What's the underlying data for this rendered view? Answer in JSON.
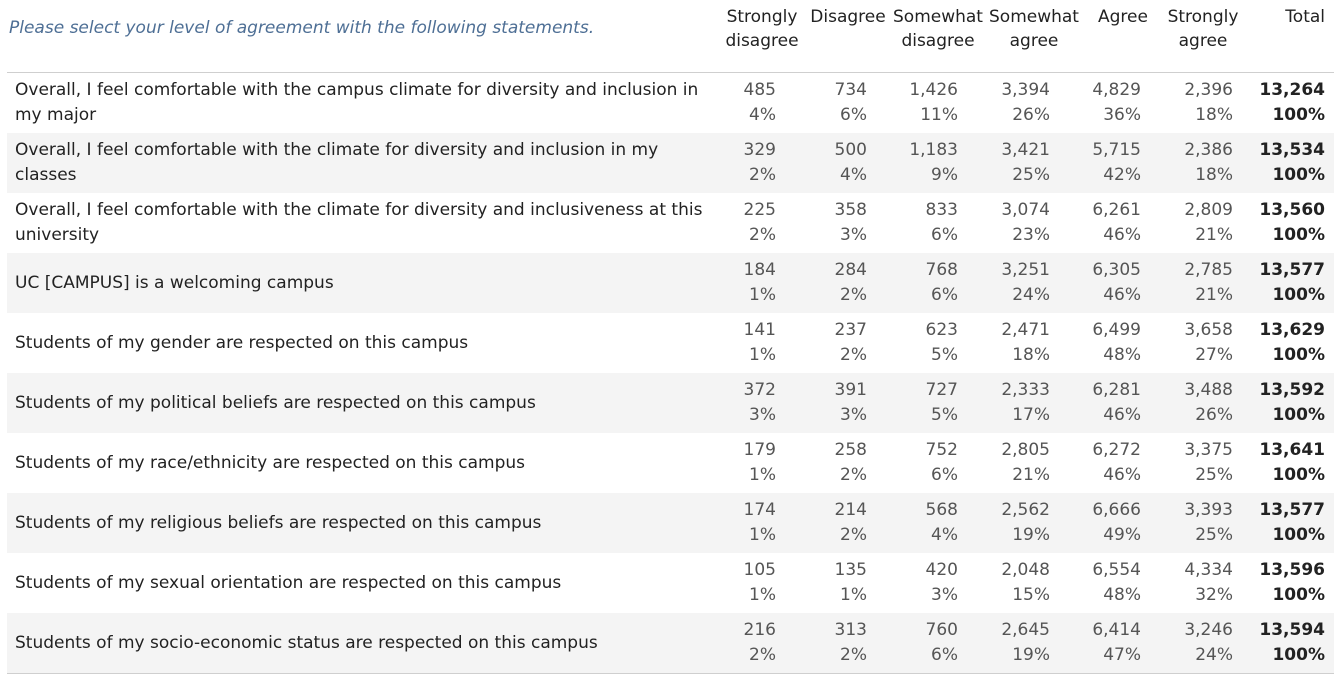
{
  "table": {
    "prompt": "Please select your level of agreement with the following statements.",
    "columns": [
      {
        "line1": "Strongly",
        "line2": "disagree"
      },
      {
        "line1": "Disagree",
        "line2": ""
      },
      {
        "line1": "Somewhat",
        "line2": "disagree"
      },
      {
        "line1": "Somewhat",
        "line2": "agree"
      },
      {
        "line1": "Agree",
        "line2": ""
      },
      {
        "line1": "Strongly",
        "line2": "agree"
      },
      {
        "line1": "Total",
        "line2": ""
      }
    ],
    "rows": [
      {
        "statement": "Overall, I feel comfortable with the campus climate for diversity and inclusion in my major",
        "cells": [
          {
            "n": "485",
            "p": "4%"
          },
          {
            "n": "734",
            "p": "6%"
          },
          {
            "n": "1,426",
            "p": "11%"
          },
          {
            "n": "3,394",
            "p": "26%"
          },
          {
            "n": "4,829",
            "p": "36%"
          },
          {
            "n": "2,396",
            "p": "18%"
          },
          {
            "n": "13,264",
            "p": "100%"
          }
        ]
      },
      {
        "statement": "Overall, I feel comfortable with the climate for diversity and inclusion in my classes",
        "cells": [
          {
            "n": "329",
            "p": "2%"
          },
          {
            "n": "500",
            "p": "4%"
          },
          {
            "n": "1,183",
            "p": "9%"
          },
          {
            "n": "3,421",
            "p": "25%"
          },
          {
            "n": "5,715",
            "p": "42%"
          },
          {
            "n": "2,386",
            "p": "18%"
          },
          {
            "n": "13,534",
            "p": "100%"
          }
        ]
      },
      {
        "statement": "Overall, I feel comfortable with the climate for diversity and inclusiveness at this university",
        "cells": [
          {
            "n": "225",
            "p": "2%"
          },
          {
            "n": "358",
            "p": "3%"
          },
          {
            "n": "833",
            "p": "6%"
          },
          {
            "n": "3,074",
            "p": "23%"
          },
          {
            "n": "6,261",
            "p": "46%"
          },
          {
            "n": "2,809",
            "p": "21%"
          },
          {
            "n": "13,560",
            "p": "100%"
          }
        ]
      },
      {
        "statement": "UC [CAMPUS] is a welcoming campus",
        "cells": [
          {
            "n": "184",
            "p": "1%"
          },
          {
            "n": "284",
            "p": "2%"
          },
          {
            "n": "768",
            "p": "6%"
          },
          {
            "n": "3,251",
            "p": "24%"
          },
          {
            "n": "6,305",
            "p": "46%"
          },
          {
            "n": "2,785",
            "p": "21%"
          },
          {
            "n": "13,577",
            "p": "100%"
          }
        ]
      },
      {
        "statement": "Students of my gender are respected on this campus",
        "cells": [
          {
            "n": "141",
            "p": "1%"
          },
          {
            "n": "237",
            "p": "2%"
          },
          {
            "n": "623",
            "p": "5%"
          },
          {
            "n": "2,471",
            "p": "18%"
          },
          {
            "n": "6,499",
            "p": "48%"
          },
          {
            "n": "3,658",
            "p": "27%"
          },
          {
            "n": "13,629",
            "p": "100%"
          }
        ]
      },
      {
        "statement": "Students of my political beliefs are respected on this campus",
        "cells": [
          {
            "n": "372",
            "p": "3%"
          },
          {
            "n": "391",
            "p": "3%"
          },
          {
            "n": "727",
            "p": "5%"
          },
          {
            "n": "2,333",
            "p": "17%"
          },
          {
            "n": "6,281",
            "p": "46%"
          },
          {
            "n": "3,488",
            "p": "26%"
          },
          {
            "n": "13,592",
            "p": "100%"
          }
        ]
      },
      {
        "statement": "Students of my race/ethnicity are respected on this campus",
        "cells": [
          {
            "n": "179",
            "p": "1%"
          },
          {
            "n": "258",
            "p": "2%"
          },
          {
            "n": "752",
            "p": "6%"
          },
          {
            "n": "2,805",
            "p": "21%"
          },
          {
            "n": "6,272",
            "p": "46%"
          },
          {
            "n": "3,375",
            "p": "25%"
          },
          {
            "n": "13,641",
            "p": "100%"
          }
        ]
      },
      {
        "statement": "Students of my religious beliefs are respected on this campus",
        "cells": [
          {
            "n": "174",
            "p": "1%"
          },
          {
            "n": "214",
            "p": "2%"
          },
          {
            "n": "568",
            "p": "4%"
          },
          {
            "n": "2,562",
            "p": "19%"
          },
          {
            "n": "6,666",
            "p": "49%"
          },
          {
            "n": "3,393",
            "p": "25%"
          },
          {
            "n": "13,577",
            "p": "100%"
          }
        ]
      },
      {
        "statement": "Students of my sexual orientation are respected on this campus",
        "cells": [
          {
            "n": "105",
            "p": "1%"
          },
          {
            "n": "135",
            "p": "1%"
          },
          {
            "n": "420",
            "p": "3%"
          },
          {
            "n": "2,048",
            "p": "15%"
          },
          {
            "n": "6,554",
            "p": "48%"
          },
          {
            "n": "4,334",
            "p": "32%"
          },
          {
            "n": "13,596",
            "p": "100%"
          }
        ]
      },
      {
        "statement": "Students of my socio-economic status are respected on this campus",
        "cells": [
          {
            "n": "216",
            "p": "2%"
          },
          {
            "n": "313",
            "p": "2%"
          },
          {
            "n": "760",
            "p": "6%"
          },
          {
            "n": "2,645",
            "p": "19%"
          },
          {
            "n": "6,414",
            "p": "47%"
          },
          {
            "n": "3,246",
            "p": "24%"
          },
          {
            "n": "13,594",
            "p": "100%"
          }
        ]
      }
    ]
  },
  "chart_data": {
    "type": "table",
    "title": "Please select your level of agreement with the following statements.",
    "columns": [
      "Strongly disagree",
      "Disagree",
      "Somewhat disagree",
      "Somewhat agree",
      "Agree",
      "Strongly agree",
      "Total"
    ],
    "rows": [
      "Overall, I feel comfortable with the campus climate for diversity and inclusion in my major",
      "Overall, I feel comfortable with the climate for diversity and inclusion in my classes",
      "Overall, I feel comfortable with the climate for diversity and inclusiveness at this university",
      "UC [CAMPUS] is a welcoming campus",
      "Students of my gender are respected on this campus",
      "Students of my political beliefs are respected on this campus",
      "Students of my race/ethnicity are respected on this campus",
      "Students of my religious beliefs are respected on this campus",
      "Students of my sexual orientation are respected on this campus",
      "Students of my socio-economic status are respected on this campus"
    ],
    "counts": [
      [
        485,
        734,
        1426,
        3394,
        4829,
        2396,
        13264
      ],
      [
        329,
        500,
        1183,
        3421,
        5715,
        2386,
        13534
      ],
      [
        225,
        358,
        833,
        3074,
        6261,
        2809,
        13560
      ],
      [
        184,
        284,
        768,
        3251,
        6305,
        2785,
        13577
      ],
      [
        141,
        237,
        623,
        2471,
        6499,
        3658,
        13629
      ],
      [
        372,
        391,
        727,
        2333,
        6281,
        3488,
        13592
      ],
      [
        179,
        258,
        752,
        2805,
        6272,
        3375,
        13641
      ],
      [
        174,
        214,
        568,
        2562,
        6666,
        3393,
        13577
      ],
      [
        105,
        135,
        420,
        2048,
        6554,
        4334,
        13596
      ],
      [
        216,
        313,
        760,
        2645,
        6414,
        3246,
        13594
      ]
    ],
    "percents": [
      [
        4,
        6,
        11,
        26,
        36,
        18,
        100
      ],
      [
        2,
        4,
        9,
        25,
        42,
        18,
        100
      ],
      [
        2,
        3,
        6,
        23,
        46,
        21,
        100
      ],
      [
        1,
        2,
        6,
        24,
        46,
        21,
        100
      ],
      [
        1,
        2,
        5,
        18,
        48,
        27,
        100
      ],
      [
        3,
        3,
        5,
        17,
        46,
        26,
        100
      ],
      [
        1,
        2,
        6,
        21,
        46,
        25,
        100
      ],
      [
        1,
        2,
        4,
        19,
        49,
        25,
        100
      ],
      [
        1,
        1,
        3,
        15,
        48,
        32,
        100
      ],
      [
        2,
        2,
        6,
        19,
        47,
        24,
        100
      ]
    ]
  }
}
